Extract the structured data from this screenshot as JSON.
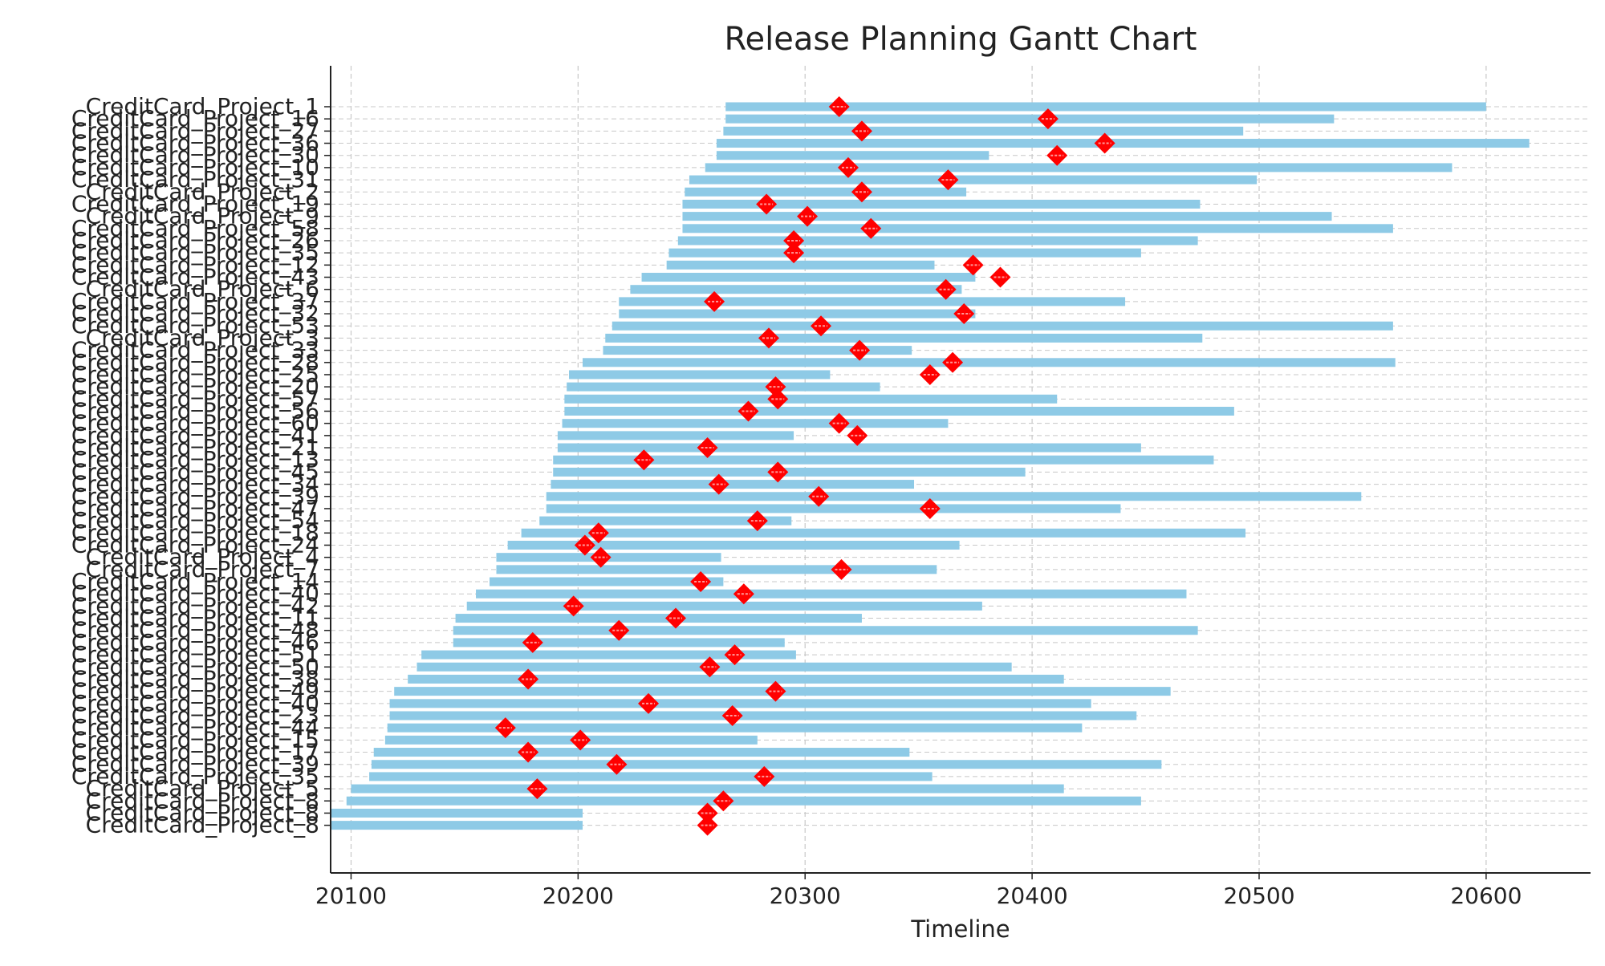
{
  "chart_data": {
    "type": "gantt",
    "title": "Release Planning Gantt Chart",
    "xlabel": "Timeline",
    "ylabel": "",
    "xlim": [
      20091,
      20646
    ],
    "xticks": [
      20100,
      20200,
      20300,
      20400,
      20500,
      20600
    ],
    "grid": true,
    "legend": "none",
    "colors": {
      "bar": "#8ecae6",
      "milestone": "#ff0000",
      "grid": "#c8c8c8",
      "axis": "#222222"
    },
    "tasks": [
      {
        "name": "CreditCard_Project_1",
        "start": 20265,
        "end": 20600,
        "milestone": 20315
      },
      {
        "name": "CreditCard_Project_16",
        "start": 20265,
        "end": 20533,
        "milestone": 20407
      },
      {
        "name": "CreditCard_Project_27",
        "start": 20264,
        "end": 20493,
        "milestone": 20325
      },
      {
        "name": "CreditCard_Project_36",
        "start": 20261,
        "end": 20619,
        "milestone": 20432
      },
      {
        "name": "CreditCard_Project_30",
        "start": 20261,
        "end": 20381,
        "milestone": 20411
      },
      {
        "name": "CreditCard_Project_10",
        "start": 20256,
        "end": 20585,
        "milestone": 20319
      },
      {
        "name": "CreditCard_Project_31",
        "start": 20249,
        "end": 20499,
        "milestone": 20363
      },
      {
        "name": "CreditCard_Project_2",
        "start": 20247,
        "end": 20371,
        "milestone": 20325
      },
      {
        "name": "CreditCard_Project_19",
        "start": 20246,
        "end": 20474,
        "milestone": 20283
      },
      {
        "name": "CreditCard_Project_9",
        "start": 20246,
        "end": 20532,
        "milestone": 20301
      },
      {
        "name": "CreditCard_Project_58",
        "start": 20246,
        "end": 20559,
        "milestone": 20329
      },
      {
        "name": "CreditCard_Project_26",
        "start": 20244,
        "end": 20473,
        "milestone": 20295
      },
      {
        "name": "CreditCard_Project_35",
        "start": 20240,
        "end": 20448,
        "milestone": 20295
      },
      {
        "name": "CreditCard_Project_12",
        "start": 20239,
        "end": 20357,
        "milestone": 20374
      },
      {
        "name": "CreditCard_Project_43",
        "start": 20228,
        "end": 20375,
        "milestone": 20386
      },
      {
        "name": "CreditCard_Project_6",
        "start": 20223,
        "end": 20369,
        "milestone": 20362
      },
      {
        "name": "CreditCard_Project_37",
        "start": 20218,
        "end": 20441,
        "milestone": 20260
      },
      {
        "name": "CreditCard_Project_32",
        "start": 20218,
        "end": 20375,
        "milestone": 20370
      },
      {
        "name": "CreditCard_Project_53",
        "start": 20215,
        "end": 20559,
        "milestone": 20307
      },
      {
        "name": "CreditCard_Project_3",
        "start": 20212,
        "end": 20475,
        "milestone": 20284
      },
      {
        "name": "CreditCard_Project_33",
        "start": 20211,
        "end": 20347,
        "milestone": 20324
      },
      {
        "name": "CreditCard_Project_28",
        "start": 20202,
        "end": 20560,
        "milestone": 20365
      },
      {
        "name": "CreditCard_Project_25",
        "start": 20196,
        "end": 20311,
        "milestone": 20355
      },
      {
        "name": "CreditCard_Project_20",
        "start": 20195,
        "end": 20333,
        "milestone": 20287
      },
      {
        "name": "CreditCard_Project_57",
        "start": 20194,
        "end": 20411,
        "milestone": 20288
      },
      {
        "name": "CreditCard_Project_56",
        "start": 20194,
        "end": 20489,
        "milestone": 20275
      },
      {
        "name": "CreditCard_Project_60",
        "start": 20193,
        "end": 20363,
        "milestone": 20315
      },
      {
        "name": "CreditCard_Project_41",
        "start": 20191,
        "end": 20295,
        "milestone": 20323
      },
      {
        "name": "CreditCard_Project_21",
        "start": 20191,
        "end": 20448,
        "milestone": 20257
      },
      {
        "name": "CreditCard_Project_13",
        "start": 20189,
        "end": 20480,
        "milestone": 20229
      },
      {
        "name": "CreditCard_Project_45",
        "start": 20189,
        "end": 20397,
        "milestone": 20288
      },
      {
        "name": "CreditCard_Project_34",
        "start": 20188,
        "end": 20348,
        "milestone": 20262
      },
      {
        "name": "CreditCard_Project_39",
        "start": 20186,
        "end": 20545,
        "milestone": 20306
      },
      {
        "name": "CreditCard_Project_47",
        "start": 20186,
        "end": 20439,
        "milestone": 20355
      },
      {
        "name": "CreditCard_Project_54",
        "start": 20183,
        "end": 20294,
        "milestone": 20279
      },
      {
        "name": "CreditCard_Project_18",
        "start": 20175,
        "end": 20494,
        "milestone": 20209
      },
      {
        "name": "CreditCard_Project_24",
        "start": 20169,
        "end": 20368,
        "milestone": 20203
      },
      {
        "name": "CreditCard_Project_4",
        "start": 20164,
        "end": 20263,
        "milestone": 20210
      },
      {
        "name": "CreditCard_Project_7",
        "start": 20164,
        "end": 20358,
        "milestone": 20316
      },
      {
        "name": "CreditCard_Project_14",
        "start": 20161,
        "end": 20264,
        "milestone": 20254
      },
      {
        "name": "CreditCard_Project_40",
        "start": 20155,
        "end": 20468,
        "milestone": 20273
      },
      {
        "name": "CreditCard_Project_42",
        "start": 20151,
        "end": 20378,
        "milestone": 20198
      },
      {
        "name": "CreditCard_Project_11",
        "start": 20146,
        "end": 20325,
        "milestone": 20243
      },
      {
        "name": "CreditCard_Project_48",
        "start": 20145,
        "end": 20473,
        "milestone": 20218
      },
      {
        "name": "CreditCard_Project_46",
        "start": 20145,
        "end": 20291,
        "milestone": 20180
      },
      {
        "name": "CreditCard_Project_51",
        "start": 20131,
        "end": 20296,
        "milestone": 20269
      },
      {
        "name": "CreditCard_Project_50",
        "start": 20129,
        "end": 20391,
        "milestone": 20258
      },
      {
        "name": "CreditCard_Project_38",
        "start": 20125,
        "end": 20414,
        "milestone": 20178
      },
      {
        "name": "CreditCard_Project_49",
        "start": 20119,
        "end": 20461,
        "milestone": 20287
      },
      {
        "name": "CreditCard_Project_40",
        "start": 20117,
        "end": 20426,
        "milestone": 20231
      },
      {
        "name": "CreditCard_Project_23",
        "start": 20117,
        "end": 20446,
        "milestone": 20268
      },
      {
        "name": "CreditCard_Project_44",
        "start": 20116,
        "end": 20422,
        "milestone": 20168
      },
      {
        "name": "CreditCard_Project_15",
        "start": 20115,
        "end": 20279,
        "milestone": 20201
      },
      {
        "name": "CreditCard_Project_17",
        "start": 20110,
        "end": 20346,
        "milestone": 20178
      },
      {
        "name": "CreditCard_Project_39",
        "start": 20109,
        "end": 20457,
        "milestone": 20217
      },
      {
        "name": "CreditCard_Project_35",
        "start": 20108,
        "end": 20356,
        "milestone": 20282
      },
      {
        "name": "CreditCard_Project_5",
        "start": 20100,
        "end": 20414,
        "milestone": 20182
      },
      {
        "name": "CreditCard_Project_8",
        "start": 20098,
        "end": 20448,
        "milestone": 20264
      },
      {
        "name": "CreditCard_Project_8",
        "start": 20091,
        "end": 20202,
        "milestone": 20257
      },
      {
        "name": "CreditCard_Project_8",
        "start": 20091,
        "end": 20202,
        "milestone": 20257
      }
    ]
  }
}
